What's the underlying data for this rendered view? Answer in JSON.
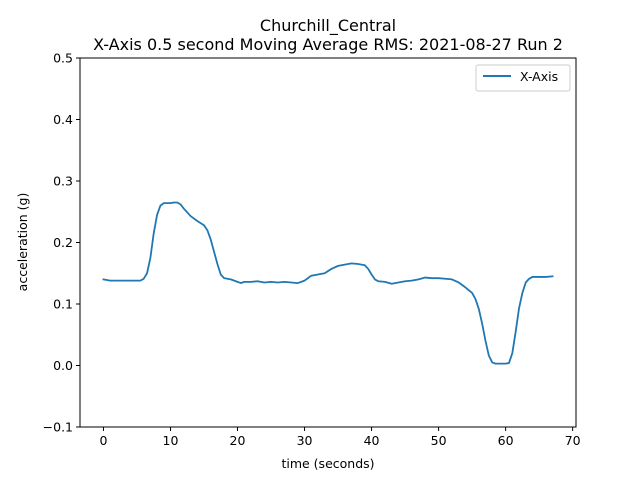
{
  "chart_data": {
    "type": "line",
    "title": "Churchill_Central",
    "subtitle": "X-Axis 0.5 second Moving Average RMS: 2021-08-27 Run 2",
    "xlabel": "time (seconds)",
    "ylabel": "acceleration (g)",
    "xlim": [
      -3.5,
      70.5
    ],
    "ylim": [
      -0.1,
      0.5
    ],
    "xticks": [
      0,
      10,
      20,
      30,
      40,
      50,
      60,
      70
    ],
    "yticks": [
      -0.1,
      0.0,
      0.1,
      0.2,
      0.3,
      0.4,
      0.5
    ],
    "xtick_labels": [
      "0",
      "10",
      "20",
      "30",
      "40",
      "50",
      "60",
      "70"
    ],
    "ytick_labels": [
      "−0.1",
      "0.0",
      "0.1",
      "0.2",
      "0.3",
      "0.4",
      "0.5"
    ],
    "grid": false,
    "legend_position": "top-right",
    "colors": {
      "line": "#1f77b4",
      "axes": "#000000",
      "legend_border": "#cccccc"
    },
    "series": [
      {
        "name": "X-Axis",
        "x": [
          0,
          0.5,
          1,
          2,
          3,
          4,
          5,
          5.5,
          6,
          6.5,
          7,
          7.5,
          8,
          8.5,
          9,
          9.5,
          10,
          10.5,
          11,
          11.5,
          12,
          13,
          14,
          15,
          15.5,
          16,
          16.5,
          17,
          17.5,
          18,
          19,
          20,
          20.5,
          21,
          22,
          23,
          24,
          25,
          26,
          27,
          28,
          29,
          30,
          31,
          32,
          33,
          34,
          35,
          36,
          37,
          38,
          39,
          39.5,
          40,
          40.5,
          41,
          42,
          43,
          44,
          45,
          46,
          47,
          48,
          49,
          50,
          51,
          52,
          53,
          54,
          55,
          55.5,
          56,
          56.5,
          57,
          57.5,
          58,
          58.5,
          59,
          59.5,
          60,
          60.5,
          61,
          61.5,
          62,
          62.5,
          63,
          63.5,
          64,
          65,
          66,
          67
        ],
        "values": [
          0.14,
          0.139,
          0.138,
          0.138,
          0.138,
          0.138,
          0.138,
          0.138,
          0.141,
          0.15,
          0.175,
          0.215,
          0.245,
          0.26,
          0.264,
          0.264,
          0.264,
          0.265,
          0.265,
          0.262,
          0.255,
          0.243,
          0.235,
          0.228,
          0.22,
          0.205,
          0.185,
          0.165,
          0.148,
          0.142,
          0.14,
          0.136,
          0.134,
          0.136,
          0.136,
          0.137,
          0.135,
          0.136,
          0.135,
          0.136,
          0.135,
          0.134,
          0.138,
          0.146,
          0.148,
          0.15,
          0.157,
          0.162,
          0.164,
          0.166,
          0.165,
          0.163,
          0.157,
          0.148,
          0.14,
          0.137,
          0.136,
          0.133,
          0.135,
          0.137,
          0.138,
          0.14,
          0.143,
          0.142,
          0.142,
          0.141,
          0.14,
          0.135,
          0.127,
          0.118,
          0.108,
          0.092,
          0.068,
          0.04,
          0.016,
          0.005,
          0.003,
          0.003,
          0.003,
          0.003,
          0.004,
          0.02,
          0.055,
          0.093,
          0.118,
          0.135,
          0.141,
          0.144,
          0.144,
          0.144,
          0.145
        ]
      }
    ]
  }
}
